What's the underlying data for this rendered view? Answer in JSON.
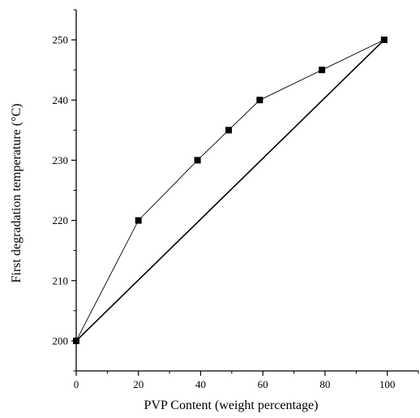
{
  "chart_data": {
    "type": "line",
    "xlabel": "PVP Content (weight percentage)",
    "ylabel": "First degradation temperature (°C)",
    "xlim": [
      0,
      110
    ],
    "ylim": [
      195,
      255
    ],
    "xticks": [
      0,
      20,
      40,
      60,
      80,
      100
    ],
    "xtick_labels": [
      "0",
      "20",
      "40",
      "60",
      "80",
      "100"
    ],
    "yticks": [
      200,
      210,
      220,
      230,
      240,
      250
    ],
    "ytick_labels": [
      "200",
      "210",
      "220",
      "230",
      "240",
      "250"
    ],
    "grid": false,
    "legend": "none",
    "series": [
      {
        "style": "line-markers",
        "marker": "square",
        "color": "#000000",
        "x": [
          0,
          20,
          39,
          49,
          59,
          79,
          99
        ],
        "y": [
          200,
          220,
          230,
          235,
          240,
          245,
          250
        ]
      },
      {
        "style": "line",
        "color": "#000000",
        "x": [
          0,
          99
        ],
        "y": [
          200,
          250
        ]
      }
    ]
  }
}
